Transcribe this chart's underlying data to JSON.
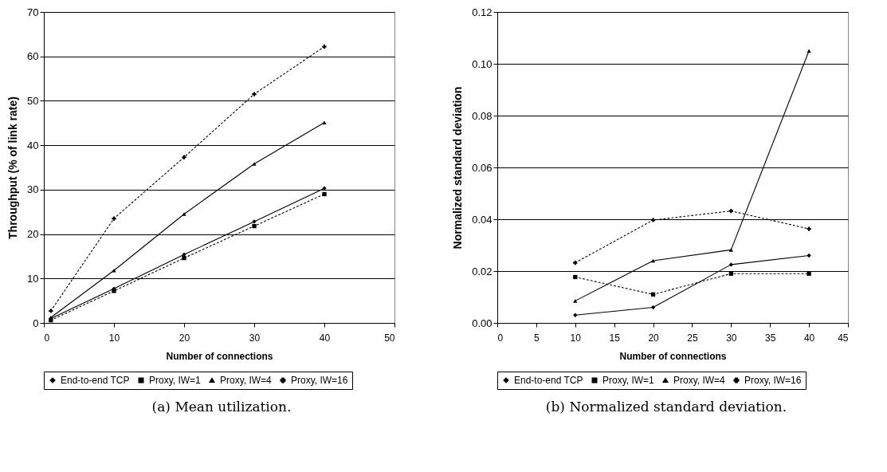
{
  "chart_data": [
    {
      "type": "line",
      "xlabel": "Number of connections",
      "ylabel": "Throughput (% of link rate)",
      "x": [
        1,
        10,
        20,
        30,
        40
      ],
      "xlim": [
        0,
        50
      ],
      "xticks": [
        0,
        10,
        20,
        30,
        40,
        50
      ],
      "ylim": [
        0,
        70
      ],
      "yticks": [
        0,
        10,
        20,
        30,
        40,
        50,
        60,
        70
      ],
      "grid": "y",
      "legend": "bottom",
      "annotations": [
        "(a) Mean utilization."
      ],
      "series": [
        {
          "name": "End-to-end TCP",
          "color": "#000000",
          "marker": "diamond",
          "line_style": "solid",
          "values": [
            1.0,
            7.7,
            15.4,
            22.8,
            30.3
          ]
        },
        {
          "name": "Proxy, IW=1",
          "color": "#000000",
          "marker": "square",
          "line_style": "dotted",
          "values": [
            0.6,
            7.2,
            14.6,
            21.8,
            29.0
          ]
        },
        {
          "name": "Proxy, IW=4",
          "color": "#000000",
          "marker": "triangle",
          "line_style": "solid",
          "values": [
            1.2,
            11.8,
            24.5,
            35.8,
            45.1
          ]
        },
        {
          "name": "Proxy, IW=16",
          "color": "#000000",
          "marker": "cross",
          "line_style": "dotted",
          "values": [
            2.7,
            23.5,
            37.3,
            51.5,
            62.2
          ]
        }
      ]
    },
    {
      "type": "line",
      "xlabel": "Number of connections",
      "ylabel": "Normalized standard deviation",
      "x": [
        10,
        20,
        30,
        40
      ],
      "xlim": [
        0,
        45
      ],
      "xticks": [
        0,
        5,
        10,
        15,
        20,
        25,
        30,
        35,
        40,
        45
      ],
      "ylim": [
        0,
        0.12
      ],
      "yticks": [
        {
          "value": 0,
          "label": "0.00"
        },
        {
          "value": 0.02,
          "label": "0.02"
        },
        {
          "value": 0.04,
          "label": "0.04"
        },
        {
          "value": 0.06,
          "label": "0.06"
        },
        {
          "value": 0.08,
          "label": "0.08"
        },
        {
          "value": 0.1,
          "label": "0.10"
        },
        {
          "value": 0.12,
          "label": "0.12"
        }
      ],
      "grid": "y",
      "legend": "bottom",
      "annotations": [
        "(b) Normalized standard deviation."
      ],
      "series": [
        {
          "name": "End-to-end TCP",
          "color": "#000000",
          "marker": "diamond",
          "line_style": "solid",
          "values": [
            0.003,
            0.006,
            0.0225,
            0.026
          ]
        },
        {
          "name": "Proxy, IW=1",
          "color": "#000000",
          "marker": "square",
          "line_style": "dotted",
          "values": [
            0.0177,
            0.011,
            0.019,
            0.019
          ]
        },
        {
          "name": "Proxy, IW=4",
          "color": "#000000",
          "marker": "triangle",
          "line_style": "solid",
          "values": [
            0.0085,
            0.024,
            0.0282,
            0.105
          ]
        },
        {
          "name": "Proxy, IW=16",
          "color": "#000000",
          "marker": "cross",
          "line_style": "dotted",
          "values": [
            0.0232,
            0.0397,
            0.0432,
            0.0363
          ]
        }
      ]
    }
  ]
}
